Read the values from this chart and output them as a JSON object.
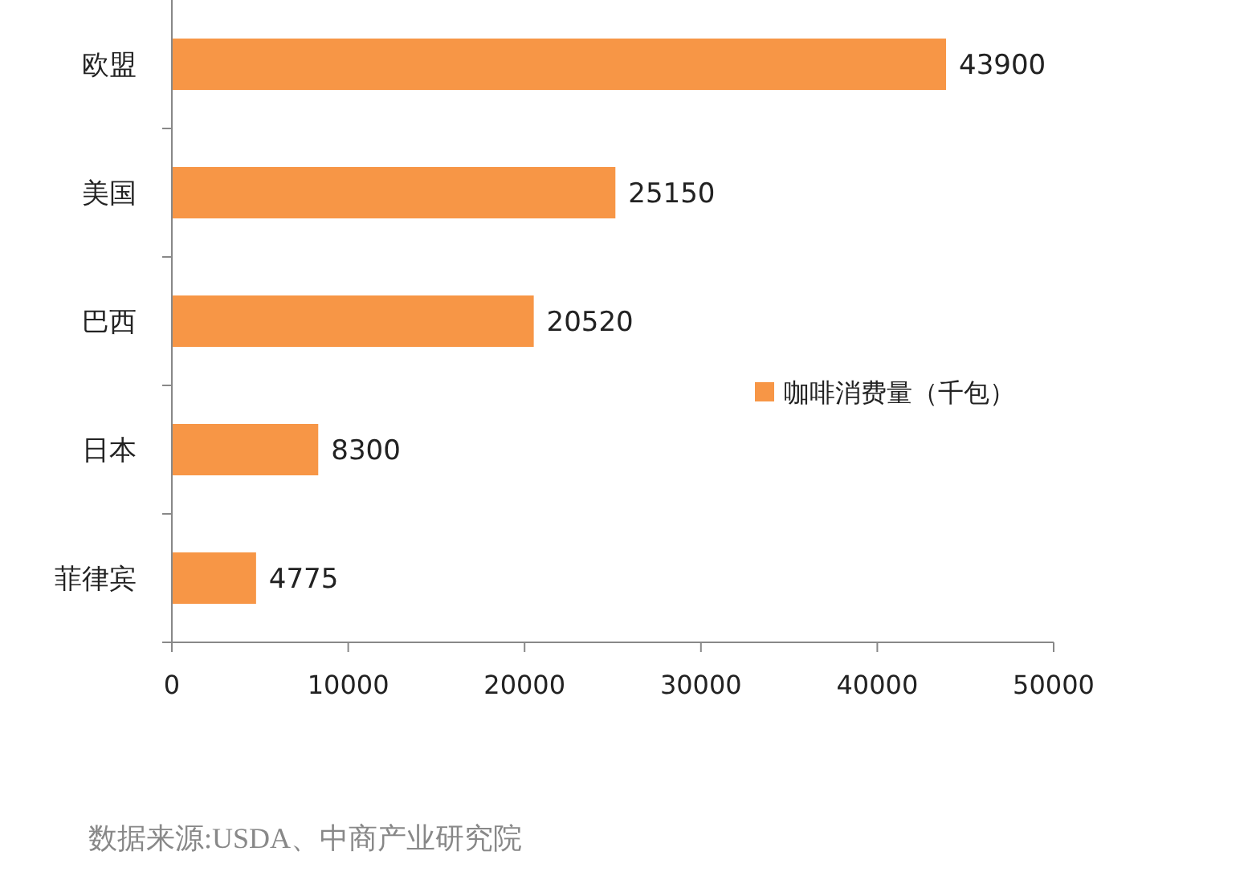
{
  "chart_data": {
    "type": "bar",
    "orientation": "horizontal",
    "categories": [
      "欧盟",
      "美国",
      "巴西",
      "日本",
      "菲律宾"
    ],
    "series": [
      {
        "name": "咖啡消费量（千包）",
        "color": "#f79646",
        "values": [
          43900,
          25150,
          20520,
          8300,
          4775
        ]
      }
    ],
    "xlim": [
      0,
      50000
    ],
    "xticks": [
      0,
      10000,
      20000,
      30000,
      40000,
      50000
    ],
    "grid": false,
    "legend": "right",
    "data_labels": true,
    "annotations": [
      "数据来源:USDA、中商产业研究院"
    ]
  }
}
